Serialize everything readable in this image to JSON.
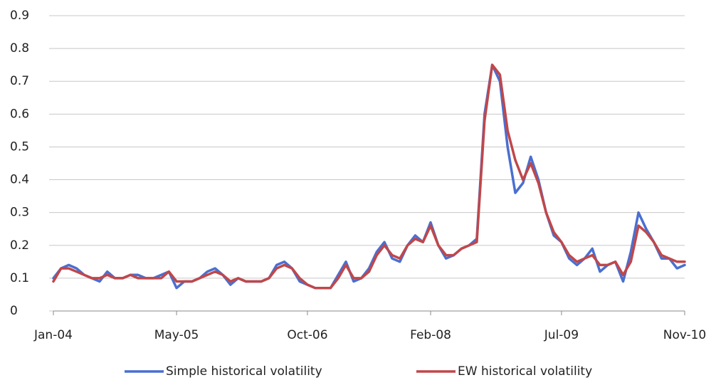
{
  "chart_data": {
    "type": "line",
    "x": [
      "2004-01",
      "2004-02",
      "2004-03",
      "2004-04",
      "2004-05",
      "2004-06",
      "2004-07",
      "2004-08",
      "2004-09",
      "2004-10",
      "2004-11",
      "2004-12",
      "2005-01",
      "2005-02",
      "2005-03",
      "2005-04",
      "2005-05",
      "2005-06",
      "2005-07",
      "2005-08",
      "2005-09",
      "2005-10",
      "2005-11",
      "2005-12",
      "2006-01",
      "2006-02",
      "2006-03",
      "2006-04",
      "2006-05",
      "2006-06",
      "2006-07",
      "2006-08",
      "2006-09",
      "2006-10",
      "2006-11",
      "2006-12",
      "2007-01",
      "2007-02",
      "2007-03",
      "2007-04",
      "2007-05",
      "2007-06",
      "2007-07",
      "2007-08",
      "2007-09",
      "2007-10",
      "2007-11",
      "2007-12",
      "2008-01",
      "2008-02",
      "2008-03",
      "2008-04",
      "2008-05",
      "2008-06",
      "2008-07",
      "2008-08",
      "2008-09",
      "2008-10",
      "2008-11",
      "2008-12",
      "2009-01",
      "2009-02",
      "2009-03",
      "2009-04",
      "2009-05",
      "2009-06",
      "2009-07",
      "2009-08",
      "2009-09",
      "2009-10",
      "2009-11",
      "2009-12",
      "2010-01",
      "2010-02",
      "2010-03",
      "2010-04",
      "2010-05",
      "2010-06",
      "2010-07",
      "2010-08",
      "2010-09",
      "2010-10",
      "2010-11"
    ],
    "series": [
      {
        "name": "Simple historical volatility",
        "color": "#4a6fd0",
        "values": [
          0.1,
          0.13,
          0.14,
          0.13,
          0.11,
          0.1,
          0.09,
          0.12,
          0.1,
          0.1,
          0.11,
          0.11,
          0.1,
          0.1,
          0.11,
          0.12,
          0.07,
          0.09,
          0.09,
          0.1,
          0.12,
          0.13,
          0.11,
          0.08,
          0.1,
          0.09,
          0.09,
          0.09,
          0.1,
          0.14,
          0.15,
          0.13,
          0.09,
          0.08,
          0.07,
          0.07,
          0.07,
          0.11,
          0.15,
          0.09,
          0.1,
          0.13,
          0.18,
          0.21,
          0.16,
          0.15,
          0.2,
          0.23,
          0.21,
          0.27,
          0.2,
          0.16,
          0.17,
          0.19,
          0.2,
          0.22,
          0.6,
          0.75,
          0.7,
          0.5,
          0.36,
          0.39,
          0.47,
          0.4,
          0.3,
          0.23,
          0.21,
          0.16,
          0.14,
          0.16,
          0.19,
          0.12,
          0.14,
          0.15,
          0.09,
          0.18,
          0.3,
          0.25,
          0.21,
          0.16,
          0.16,
          0.13,
          0.14
        ]
      },
      {
        "name": "EW historical volatility",
        "color": "#c0474a",
        "values": [
          0.09,
          0.13,
          0.13,
          0.12,
          0.11,
          0.1,
          0.1,
          0.11,
          0.1,
          0.1,
          0.11,
          0.1,
          0.1,
          0.1,
          0.1,
          0.12,
          0.09,
          0.09,
          0.09,
          0.1,
          0.11,
          0.12,
          0.11,
          0.09,
          0.1,
          0.09,
          0.09,
          0.09,
          0.1,
          0.13,
          0.14,
          0.13,
          0.1,
          0.08,
          0.07,
          0.07,
          0.07,
          0.1,
          0.14,
          0.1,
          0.1,
          0.12,
          0.17,
          0.2,
          0.17,
          0.16,
          0.2,
          0.22,
          0.21,
          0.26,
          0.2,
          0.17,
          0.17,
          0.19,
          0.2,
          0.21,
          0.58,
          0.75,
          0.72,
          0.55,
          0.46,
          0.4,
          0.45,
          0.39,
          0.3,
          0.24,
          0.21,
          0.17,
          0.15,
          0.16,
          0.17,
          0.14,
          0.14,
          0.15,
          0.11,
          0.15,
          0.26,
          0.24,
          0.21,
          0.17,
          0.16,
          0.15,
          0.15
        ]
      }
    ],
    "xlim": [
      "2004-01",
      "2010-11"
    ],
    "xticks": [
      {
        "value": "2004-01",
        "label": "Jan-04"
      },
      {
        "value": "2005-05",
        "label": "May-05"
      },
      {
        "value": "2006-10",
        "label": "Oct-06"
      },
      {
        "value": "2008-02",
        "label": "Feb-08"
      },
      {
        "value": "2009-07",
        "label": "Jul-09"
      },
      {
        "value": "2010-11",
        "label": "Nov-10"
      }
    ],
    "ylim": [
      0,
      0.9
    ],
    "yticks": [
      0,
      0.1,
      0.2,
      0.3,
      0.4,
      0.5,
      0.6,
      0.7,
      0.8,
      0.9
    ],
    "grid": true,
    "legend": "bottom"
  }
}
